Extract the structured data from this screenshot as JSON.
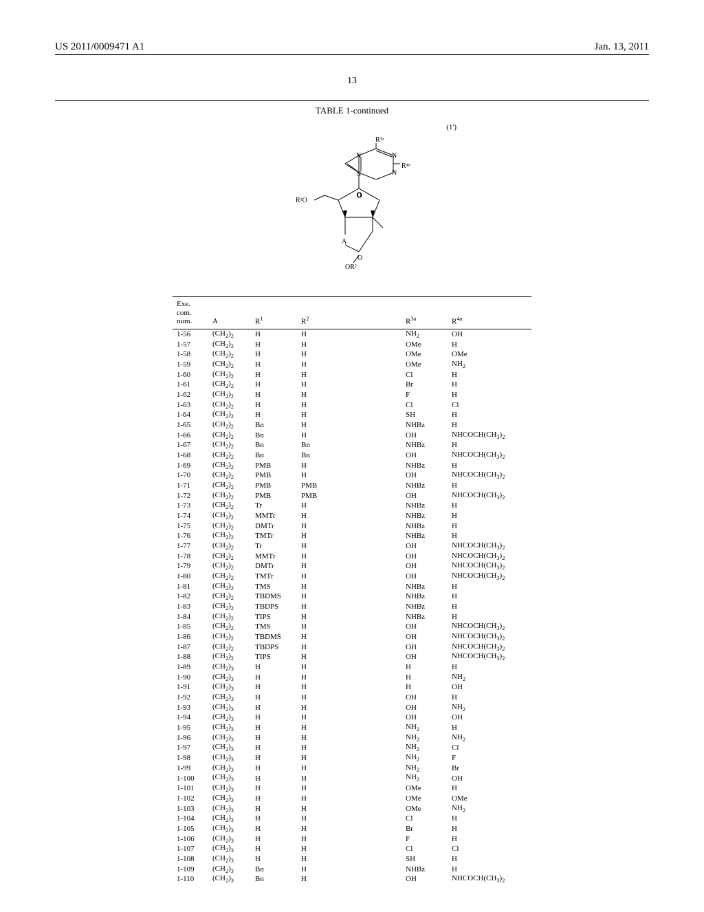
{
  "header": {
    "patent_number": "US 2011/0009471 A1",
    "date": "Jan. 13, 2011"
  },
  "page_number": "13",
  "table_title": "TABLE 1-continued",
  "formula_ref": "(1')",
  "columns": {
    "num_lines": [
      "Exe.",
      "com.",
      "num."
    ],
    "a": "A",
    "r1": "R¹",
    "r2": "R²",
    "r3a": "R³ᵃ",
    "r4a": "R⁴ᵃ"
  },
  "rows": [
    {
      "num": "1-56",
      "a": "(CH₂)₂",
      "r1": "H",
      "r2": "H",
      "r3a": "NH₂",
      "r4a": "OH"
    },
    {
      "num": "1-57",
      "a": "(CH₂)₂",
      "r1": "H",
      "r2": "H",
      "r3a": "OMe",
      "r4a": "H"
    },
    {
      "num": "1-58",
      "a": "(CH₂)₂",
      "r1": "H",
      "r2": "H",
      "r3a": "OMe",
      "r4a": "OMe"
    },
    {
      "num": "1-59",
      "a": "(CH₂)₂",
      "r1": "H",
      "r2": "H",
      "r3a": "OMe",
      "r4a": "NH₂"
    },
    {
      "num": "1-60",
      "a": "(CH₂)₂",
      "r1": "H",
      "r2": "H",
      "r3a": "Cl",
      "r4a": "H"
    },
    {
      "num": "1-61",
      "a": "(CH₂)₂",
      "r1": "H",
      "r2": "H",
      "r3a": "Br",
      "r4a": "H"
    },
    {
      "num": "1-62",
      "a": "(CH₂)₂",
      "r1": "H",
      "r2": "H",
      "r3a": "F",
      "r4a": "H"
    },
    {
      "num": "1-63",
      "a": "(CH₂)₂",
      "r1": "H",
      "r2": "H",
      "r3a": "Cl",
      "r4a": "Cl"
    },
    {
      "num": "1-64",
      "a": "(CH₂)₂",
      "r1": "H",
      "r2": "H",
      "r3a": "SH",
      "r4a": "H"
    },
    {
      "num": "1-65",
      "a": "(CH₂)₂",
      "r1": "Bn",
      "r2": "H",
      "r3a": "NHBz",
      "r4a": "H"
    },
    {
      "num": "1-66",
      "a": "(CH₂)₂",
      "r1": "Bn",
      "r2": "H",
      "r3a": "OH",
      "r4a": "NHCOCH(CH₃)₂"
    },
    {
      "num": "1-67",
      "a": "(CH₂)₂",
      "r1": "Bn",
      "r2": "Bn",
      "r3a": "NHBz",
      "r4a": "H"
    },
    {
      "num": "1-68",
      "a": "(CH₂)₂",
      "r1": "Bn",
      "r2": "Bn",
      "r3a": "OH",
      "r4a": "NHCOCH(CH₃)₂"
    },
    {
      "num": "1-69",
      "a": "(CH₂)₂",
      "r1": "PMB",
      "r2": "H",
      "r3a": "NHBz",
      "r4a": "H"
    },
    {
      "num": "1-70",
      "a": "(CH₂)₂",
      "r1": "PMB",
      "r2": "H",
      "r3a": "OH",
      "r4a": "NHCOCH(CH₃)₂"
    },
    {
      "num": "1-71",
      "a": "(CH₂)₂",
      "r1": "PMB",
      "r2": "PMB",
      "r3a": "NHBz",
      "r4a": "H"
    },
    {
      "num": "1-72",
      "a": "(CH₂)₂",
      "r1": "PMB",
      "r2": "PMB",
      "r3a": "OH",
      "r4a": "NHCOCH(CH₃)₂"
    },
    {
      "num": "1-73",
      "a": "(CH₂)₂",
      "r1": "Tr",
      "r2": "H",
      "r3a": "NHBz",
      "r4a": "H"
    },
    {
      "num": "1-74",
      "a": "(CH₂)₂",
      "r1": "MMTr",
      "r2": "H",
      "r3a": "NHBz",
      "r4a": "H"
    },
    {
      "num": "1-75",
      "a": "(CH₂)₂",
      "r1": "DMTr",
      "r2": "H",
      "r3a": "NHBz",
      "r4a": "H"
    },
    {
      "num": "1-76",
      "a": "(CH₂)₂",
      "r1": "TMTr",
      "r2": "H",
      "r3a": "NHBz",
      "r4a": "H"
    },
    {
      "num": "1-77",
      "a": "(CH₂)₂",
      "r1": "Tr",
      "r2": "H",
      "r3a": "OH",
      "r4a": "NHCOCH(CH₃)₂"
    },
    {
      "num": "1-78",
      "a": "(CH₂)₂",
      "r1": "MMTr",
      "r2": "H",
      "r3a": "OH",
      "r4a": "NHCOCH(CH₃)₂"
    },
    {
      "num": "1-79",
      "a": "(CH₂)₂",
      "r1": "DMTr",
      "r2": "H",
      "r3a": "OH",
      "r4a": "NHCOCH(CH₃)₂"
    },
    {
      "num": "1-80",
      "a": "(CH₂)₂",
      "r1": "TMTr",
      "r2": "H",
      "r3a": "OH",
      "r4a": "NHCOCH(CH₃)₂"
    },
    {
      "num": "1-81",
      "a": "(CH₂)₂",
      "r1": "TMS",
      "r2": "H",
      "r3a": "NHBz",
      "r4a": "H"
    },
    {
      "num": "1-82",
      "a": "(CH₂)₂",
      "r1": "TBDMS",
      "r2": "H",
      "r3a": "NHBz",
      "r4a": "H"
    },
    {
      "num": "1-83",
      "a": "(CH₂)₂",
      "r1": "TBDPS",
      "r2": "H",
      "r3a": "NHBz",
      "r4a": "H"
    },
    {
      "num": "1-84",
      "a": "(CH₂)₂",
      "r1": "TIPS",
      "r2": "H",
      "r3a": "NHBz",
      "r4a": "H"
    },
    {
      "num": "1-85",
      "a": "(CH₂)₂",
      "r1": "TMS",
      "r2": "H",
      "r3a": "OH",
      "r4a": "NHCOCH(CH₃)₂"
    },
    {
      "num": "1-86",
      "a": "(CH₂)₂",
      "r1": "TBDMS",
      "r2": "H",
      "r3a": "OH",
      "r4a": "NHCOCH(CH₃)₂"
    },
    {
      "num": "1-87",
      "a": "(CH₂)₂",
      "r1": "TBDPS",
      "r2": "H",
      "r3a": "OH",
      "r4a": "NHCOCH(CH₃)₂"
    },
    {
      "num": "1-88",
      "a": "(CH₂)₂",
      "r1": "TIPS",
      "r2": "H",
      "r3a": "OH",
      "r4a": "NHCOCH(CH₃)₂"
    },
    {
      "num": "1-89",
      "a": "(CH₂)₃",
      "r1": "H",
      "r2": "H",
      "r3a": "H",
      "r4a": "H"
    },
    {
      "num": "1-90",
      "a": "(CH₂)₃",
      "r1": "H",
      "r2": "H",
      "r3a": "H",
      "r4a": "NH₂"
    },
    {
      "num": "1-91",
      "a": "(CH₂)₃",
      "r1": "H",
      "r2": "H",
      "r3a": "H",
      "r4a": "OH"
    },
    {
      "num": "1-92",
      "a": "(CH₂)₃",
      "r1": "H",
      "r2": "H",
      "r3a": "OH",
      "r4a": "H"
    },
    {
      "num": "1-93",
      "a": "(CH₂)₃",
      "r1": "H",
      "r2": "H",
      "r3a": "OH",
      "r4a": "NH₂"
    },
    {
      "num": "1-94",
      "a": "(CH₂)₃",
      "r1": "H",
      "r2": "H",
      "r3a": "OH",
      "r4a": "OH"
    },
    {
      "num": "1-95",
      "a": "(CH₂)₃",
      "r1": "H",
      "r2": "H",
      "r3a": "NH₂",
      "r4a": "H"
    },
    {
      "num": "1-96",
      "a": "(CH₂)₃",
      "r1": "H",
      "r2": "H",
      "r3a": "NH₂",
      "r4a": "NH₂"
    },
    {
      "num": "1-97",
      "a": "(CH₂)₃",
      "r1": "H",
      "r2": "H",
      "r3a": "NH₂",
      "r4a": "Cl"
    },
    {
      "num": "1-98",
      "a": "(CH₂)₃",
      "r1": "H",
      "r2": "H",
      "r3a": "NH₂",
      "r4a": "F"
    },
    {
      "num": "1-99",
      "a": "(CH₂)₃",
      "r1": "H",
      "r2": "H",
      "r3a": "NH₂",
      "r4a": "Br"
    },
    {
      "num": "1-100",
      "a": "(CH₂)₃",
      "r1": "H",
      "r2": "H",
      "r3a": "NH₂",
      "r4a": "OH"
    },
    {
      "num": "1-101",
      "a": "(CH₂)₃",
      "r1": "H",
      "r2": "H",
      "r3a": "OMe",
      "r4a": "H"
    },
    {
      "num": "1-102",
      "a": "(CH₂)₃",
      "r1": "H",
      "r2": "H",
      "r3a": "OMe",
      "r4a": "OMe"
    },
    {
      "num": "1-103",
      "a": "(CH₂)₃",
      "r1": "H",
      "r2": "H",
      "r3a": "OMe",
      "r4a": "NH₂"
    },
    {
      "num": "1-104",
      "a": "(CH₂)₃",
      "r1": "H",
      "r2": "H",
      "r3a": "Cl",
      "r4a": "H"
    },
    {
      "num": "1-105",
      "a": "(CH₂)₃",
      "r1": "H",
      "r2": "H",
      "r3a": "Br",
      "r4a": "H"
    },
    {
      "num": "1-106",
      "a": "(CH₂)₃",
      "r1": "H",
      "r2": "H",
      "r3a": "F",
      "r4a": "H"
    },
    {
      "num": "1-107",
      "a": "(CH₂)₃",
      "r1": "H",
      "r2": "H",
      "r3a": "Cl",
      "r4a": "Cl"
    },
    {
      "num": "1-108",
      "a": "(CH₂)₃",
      "r1": "H",
      "r2": "H",
      "r3a": "SH",
      "r4a": "H"
    },
    {
      "num": "1-109",
      "a": "(CH₂)₃",
      "r1": "Bn",
      "r2": "H",
      "r3a": "NHBz",
      "r4a": "H"
    },
    {
      "num": "1-110",
      "a": "(CH₂)₃",
      "r1": "Bn",
      "r2": "H",
      "r3a": "OH",
      "r4a": "NHCOCH(CH₃)₂"
    }
  ]
}
